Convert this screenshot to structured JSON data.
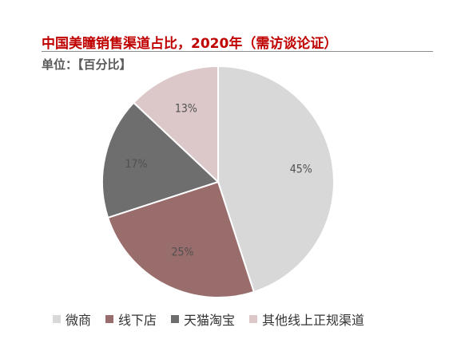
{
  "page": {
    "top_cut_text": "",
    "title": "中国美瞳销售渠道占比，2020年（需访谈论证）",
    "unit": "单位：【百分比】"
  },
  "chart_data": {
    "type": "pie",
    "title": "中国美瞳销售渠道占比，2020年（需访谈论证）",
    "unit": "单位：【百分比】",
    "categories": [
      "微商",
      "线下店",
      "天猫淘宝",
      "其他线上正规渠道"
    ],
    "values": [
      45,
      25,
      17,
      13
    ],
    "labels": [
      "45%",
      "25%",
      "17%",
      "13%"
    ],
    "colors": [
      "#d8d8d8",
      "#9a6d6d",
      "#6e6e6e",
      "#dcc8c8"
    ],
    "legend_position": "bottom",
    "grid": false
  }
}
